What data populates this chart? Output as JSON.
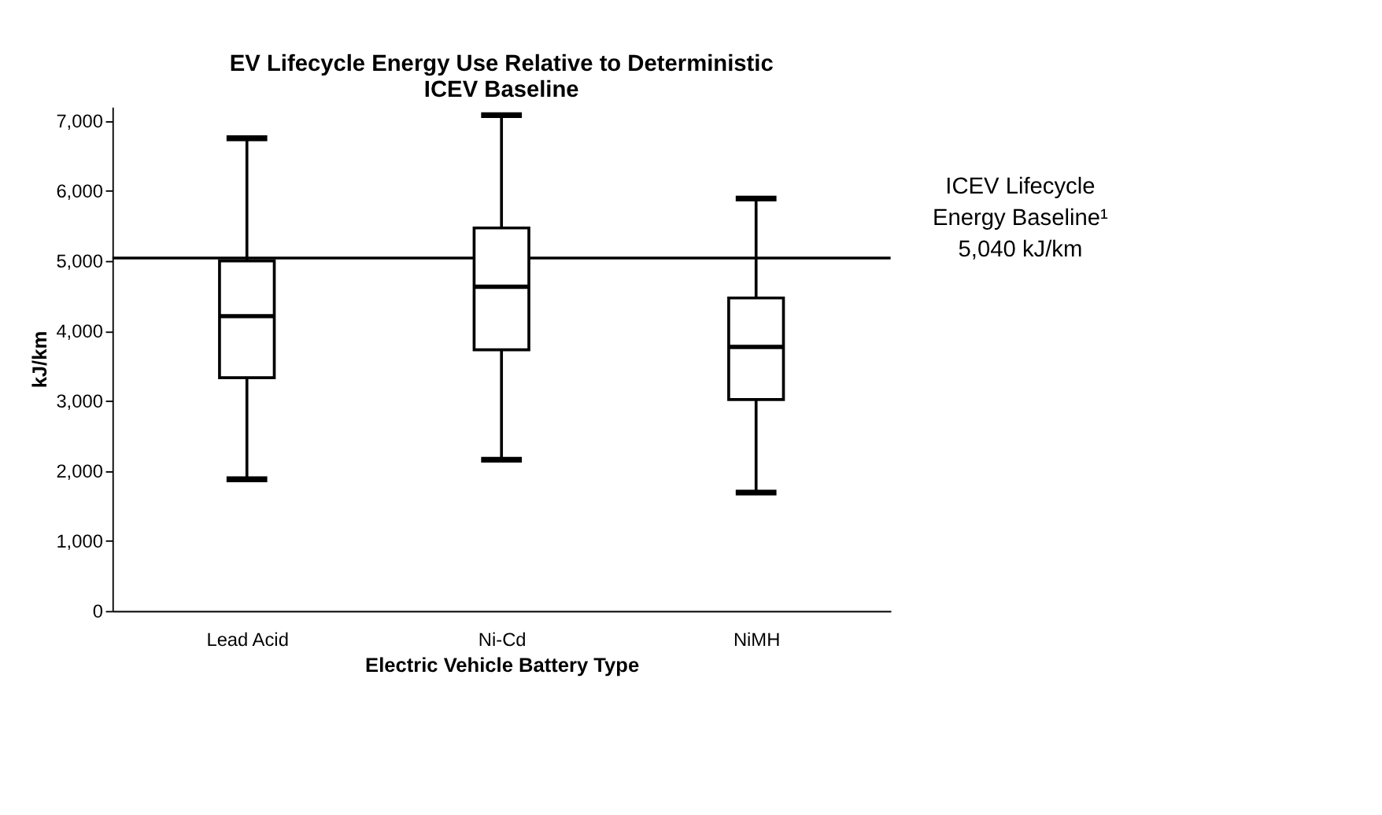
{
  "chart_data": {
    "type": "box",
    "title": "EV Lifecycle Energy Use Relative to Deterministic\nICEV Baseline",
    "xlabel": "Electric Vehicle Battery Type",
    "ylabel": "kJ/km",
    "categories": [
      "Lead Acid",
      "Ni-Cd",
      "NiMH"
    ],
    "boxes": [
      {
        "low": 1880,
        "q1": 3330,
        "median": 4210,
        "q3": 5000,
        "high": 6750
      },
      {
        "low": 2160,
        "q1": 3730,
        "median": 4630,
        "q3": 5470,
        "high": 7080
      },
      {
        "low": 1690,
        "q1": 3020,
        "median": 3770,
        "q3": 4470,
        "high": 5890
      }
    ],
    "color": "#ffffff",
    "ylim": [
      0,
      7200
    ],
    "yticks": [
      {
        "value": 0,
        "label": "0"
      },
      {
        "value": 1000,
        "label": "1,000"
      },
      {
        "value": 2000,
        "label": "2,000"
      },
      {
        "value": 3000,
        "label": "3,000"
      },
      {
        "value": 4000,
        "label": "4,000"
      },
      {
        "value": 5000,
        "label": "5,000"
      },
      {
        "value": 6000,
        "label": "6,000"
      },
      {
        "value": 7000,
        "label": "7,000"
      }
    ],
    "ref_lines": [
      {
        "axis": "y",
        "value": 5040,
        "label": "ICEV Lifecycle\nEnergy Baseline¹\n5,040 kJ/km",
        "color": "#000000"
      }
    ],
    "grid": false
  }
}
